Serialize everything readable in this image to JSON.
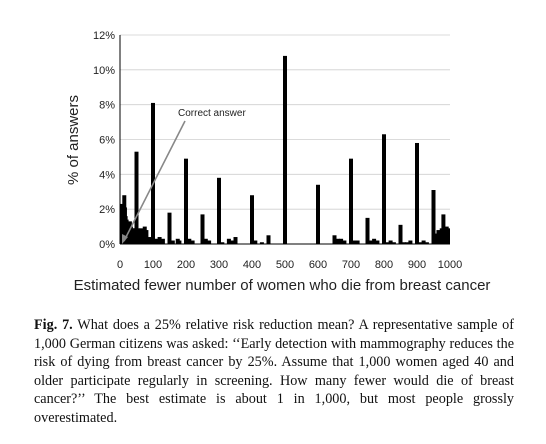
{
  "chart_data": {
    "type": "bar",
    "xlabel": "Estimated fewer number of women who die from breast cancer",
    "ylabel": "% of answers",
    "xlim": [
      0,
      1000
    ],
    "ylim": [
      0,
      12
    ],
    "x_ticks": [
      "0",
      "100",
      "200",
      "300",
      "400",
      "500",
      "600",
      "700",
      "800",
      "900",
      "1000"
    ],
    "y_ticks": [
      "0%",
      "2%",
      "4%",
      "6%",
      "8%",
      "10%",
      "12%"
    ],
    "annotation": "Correct answer",
    "annotation_target_x": 1,
    "x": [
      1,
      3,
      5,
      7,
      9,
      11,
      13,
      15,
      17,
      20,
      22,
      25,
      28,
      30,
      33,
      35,
      38,
      40,
      45,
      50,
      55,
      60,
      65,
      70,
      75,
      80,
      90,
      100,
      110,
      120,
      125,
      130,
      150,
      160,
      175,
      180,
      200,
      210,
      220,
      250,
      260,
      270,
      300,
      310,
      330,
      340,
      350,
      400,
      410,
      430,
      450,
      500,
      600,
      650,
      660,
      670,
      680,
      700,
      710,
      720,
      750,
      760,
      770,
      780,
      800,
      810,
      820,
      830,
      850,
      860,
      870,
      880,
      900,
      910,
      920,
      930,
      950,
      955,
      960,
      965,
      970,
      975,
      980,
      985,
      990,
      995,
      1000
    ],
    "values": [
      1.4,
      1.8,
      2.0,
      2.3,
      2.2,
      1.9,
      2.8,
      2.1,
      1.6,
      1.4,
      1.2,
      0.9,
      1.1,
      1.3,
      1.0,
      0.8,
      0.9,
      0.8,
      0.9,
      5.3,
      0.9,
      0.8,
      0.9,
      0.8,
      1.0,
      0.8,
      0.4,
      8.1,
      0.3,
      0.4,
      0.2,
      0.3,
      1.8,
      0.2,
      0.3,
      0.2,
      4.9,
      0.3,
      0.2,
      1.7,
      0.3,
      0.2,
      3.8,
      0.1,
      0.3,
      0.2,
      0.4,
      2.8,
      0.2,
      0.1,
      0.5,
      10.8,
      3.4,
      0.5,
      0.3,
      0.3,
      0.2,
      4.9,
      0.2,
      0.2,
      1.5,
      0.2,
      0.3,
      0.2,
      6.3,
      0.1,
      0.2,
      0.1,
      1.1,
      0.1,
      0.1,
      0.2,
      5.8,
      0.1,
      0.2,
      0.1,
      3.1,
      0.4,
      0.6,
      0.8,
      0.7,
      0.9,
      1.7,
      0.8,
      1.0,
      0.9,
      0.7
    ]
  },
  "caption": {
    "fig_label": "Fig. 7.",
    "text": "What does a 25% relative risk reduction mean? A representative sample of 1,000 German citizens was asked: ‘‘Early detection with mammography reduces the risk of dying from breast cancer by 25%. Assume that 1,000 women aged 40 and older participate regularly in screening. How many fewer would die of breast cancer?’’ The best estimate is about 1 in 1,000, but most people grossly overestimated."
  }
}
